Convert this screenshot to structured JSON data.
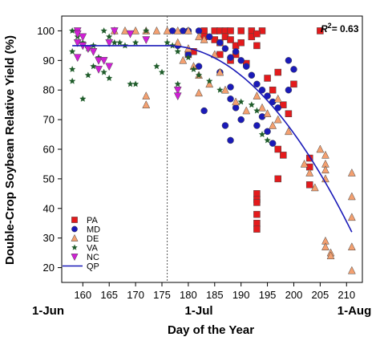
{
  "chart_data": {
    "type": "scatter",
    "xlabel": "Day of the Year",
    "ylabel": "Double-Crop Soybean Relative Yield (%)",
    "xlim": [
      156,
      213
    ],
    "ylim": [
      15,
      105
    ],
    "x_ticks": [
      160,
      165,
      170,
      175,
      180,
      185,
      190,
      195,
      200,
      205,
      210
    ],
    "y_ticks": [
      20,
      30,
      40,
      50,
      60,
      70,
      80,
      90,
      100
    ],
    "date_labels": [
      {
        "day": 152,
        "label": "1-Jun"
      },
      {
        "day": 182,
        "label": "1-Jul"
      },
      {
        "day": 213,
        "label": "1-Aug"
      }
    ],
    "reference_line_x": 176,
    "annotation": {
      "r2_label": "R",
      "r2_sup": "2",
      "r2_value": "= 0.63"
    },
    "legend_position": "bottom-left",
    "series": [
      {
        "name": "PA",
        "marker": "square",
        "color": "#e41a1c",
        "points": [
          [
            183,
            100
          ],
          [
            185,
            100
          ],
          [
            186,
            100
          ],
          [
            187,
            100
          ],
          [
            188,
            100
          ],
          [
            190,
            100
          ],
          [
            192,
            100
          ],
          [
            194,
            100
          ],
          [
            183,
            98
          ],
          [
            185,
            97
          ],
          [
            186,
            96
          ],
          [
            187,
            98
          ],
          [
            188,
            97
          ],
          [
            189,
            95
          ],
          [
            190,
            96
          ],
          [
            192,
            98
          ],
          [
            193,
            99
          ],
          [
            180,
            92
          ],
          [
            181,
            93
          ],
          [
            186,
            92
          ],
          [
            188,
            90
          ],
          [
            189,
            92
          ],
          [
            191,
            89
          ],
          [
            193,
            95
          ],
          [
            195,
            84
          ],
          [
            196,
            80
          ],
          [
            197,
            86
          ],
          [
            198,
            75
          ],
          [
            199,
            72
          ],
          [
            200,
            82
          ],
          [
            197,
            60
          ],
          [
            198,
            58
          ],
          [
            197,
            50
          ],
          [
            203,
            57
          ],
          [
            203,
            54
          ],
          [
            203,
            48
          ],
          [
            193,
            45
          ],
          [
            193,
            43
          ],
          [
            193,
            42
          ],
          [
            193,
            38
          ],
          [
            193,
            35
          ],
          [
            193,
            33
          ],
          [
            205,
            100
          ]
        ]
      },
      {
        "name": "MD",
        "marker": "circle",
        "color": "#1a1ab8",
        "points": [
          [
            177,
            100
          ],
          [
            179,
            100
          ],
          [
            180,
            100
          ],
          [
            182,
            100
          ],
          [
            184,
            98
          ],
          [
            186,
            96
          ],
          [
            187,
            94
          ],
          [
            188,
            91
          ],
          [
            189,
            93
          ],
          [
            190,
            90
          ],
          [
            191,
            88
          ],
          [
            192,
            85
          ],
          [
            193,
            82
          ],
          [
            194,
            80
          ],
          [
            195,
            78
          ],
          [
            196,
            76
          ],
          [
            197,
            74
          ],
          [
            199,
            90
          ],
          [
            200,
            87
          ],
          [
            199,
            80
          ],
          [
            178,
            95
          ],
          [
            180,
            92
          ],
          [
            182,
            88
          ],
          [
            183,
            73
          ],
          [
            186,
            86
          ],
          [
            187,
            68
          ],
          [
            188,
            81
          ],
          [
            188,
            77
          ],
          [
            189,
            74
          ],
          [
            190,
            70
          ],
          [
            188,
            63
          ],
          [
            193,
            68
          ],
          [
            194,
            71
          ],
          [
            195,
            66
          ],
          [
            196,
            62
          ]
        ]
      },
      {
        "name": "DE",
        "marker": "triangle-up",
        "color": "#f4a070",
        "points": [
          [
            168,
            100
          ],
          [
            170,
            100
          ],
          [
            172,
            100
          ],
          [
            174,
            100
          ],
          [
            176,
            100
          ],
          [
            178,
            100
          ],
          [
            180,
            100
          ],
          [
            182,
            98
          ],
          [
            183,
            97
          ],
          [
            178,
            96
          ],
          [
            179,
            90
          ],
          [
            181,
            88
          ],
          [
            182,
            85
          ],
          [
            184,
            82
          ],
          [
            185,
            92
          ],
          [
            186,
            86
          ],
          [
            187,
            80
          ],
          [
            189,
            76
          ],
          [
            191,
            73
          ],
          [
            193,
            78
          ],
          [
            194,
            74
          ],
          [
            195,
            72
          ],
          [
            196,
            68
          ],
          [
            197,
            70
          ],
          [
            199,
            66
          ],
          [
            172,
            78
          ],
          [
            172,
            75
          ],
          [
            182,
            79
          ],
          [
            202,
            55
          ],
          [
            203,
            52
          ],
          [
            204,
            47
          ],
          [
            205,
            60
          ],
          [
            206,
            58
          ],
          [
            206,
            55
          ],
          [
            206,
            53
          ],
          [
            206,
            50
          ],
          [
            206,
            29
          ],
          [
            206,
            27
          ],
          [
            207,
            25
          ],
          [
            207,
            24
          ],
          [
            211,
            52
          ],
          [
            211,
            44
          ],
          [
            211,
            37
          ],
          [
            211,
            27
          ],
          [
            211,
            19
          ],
          [
            166,
            100
          ],
          [
            180,
            94
          ],
          [
            197,
            77
          ]
        ]
      },
      {
        "name": "VA",
        "marker": "star",
        "color": "#1f5c2a",
        "points": [
          [
            158,
            100
          ],
          [
            159,
            98
          ],
          [
            160,
            96
          ],
          [
            161,
            94
          ],
          [
            162,
            95
          ],
          [
            163,
            91
          ],
          [
            164,
            100
          ],
          [
            165,
            98
          ],
          [
            166,
            96
          ],
          [
            158,
            87
          ],
          [
            158,
            83
          ],
          [
            160,
            77
          ],
          [
            161,
            85
          ],
          [
            164,
            86
          ],
          [
            165,
            84
          ],
          [
            167,
            96
          ],
          [
            168,
            95
          ],
          [
            169,
            82
          ],
          [
            170,
            82
          ],
          [
            172,
            100
          ],
          [
            174,
            88
          ],
          [
            175,
            86
          ],
          [
            176,
            96
          ],
          [
            177,
            95
          ],
          [
            178,
            93
          ],
          [
            180,
            91
          ],
          [
            181,
            87
          ],
          [
            182,
            85
          ],
          [
            184,
            83
          ],
          [
            186,
            80
          ],
          [
            190,
            76
          ],
          [
            192,
            75
          ],
          [
            193,
            73
          ],
          [
            194,
            65
          ],
          [
            195,
            63
          ],
          [
            158,
            93
          ],
          [
            162,
            88
          ],
          [
            170,
            96
          ],
          [
            178,
            82
          ]
        ]
      },
      {
        "name": "NC",
        "marker": "triangle-down",
        "color": "#d11fd6",
        "points": [
          [
            159,
            100
          ],
          [
            159,
            99
          ],
          [
            160,
            98
          ],
          [
            159,
            96
          ],
          [
            160,
            95
          ],
          [
            161,
            94
          ],
          [
            162,
            93
          ],
          [
            163,
            90
          ],
          [
            164,
            90
          ],
          [
            165,
            96
          ],
          [
            159,
            91
          ],
          [
            163,
            87
          ],
          [
            165,
            88
          ],
          [
            166,
            100
          ],
          [
            169,
            99
          ],
          [
            172,
            97
          ],
          [
            178,
            80
          ],
          [
            178,
            78
          ]
        ]
      }
    ],
    "fit": {
      "name": "QP",
      "color": "#1a1ab8",
      "plateau_y": 95,
      "join_x": 176,
      "end_x": 211,
      "end_y": 32
    }
  }
}
